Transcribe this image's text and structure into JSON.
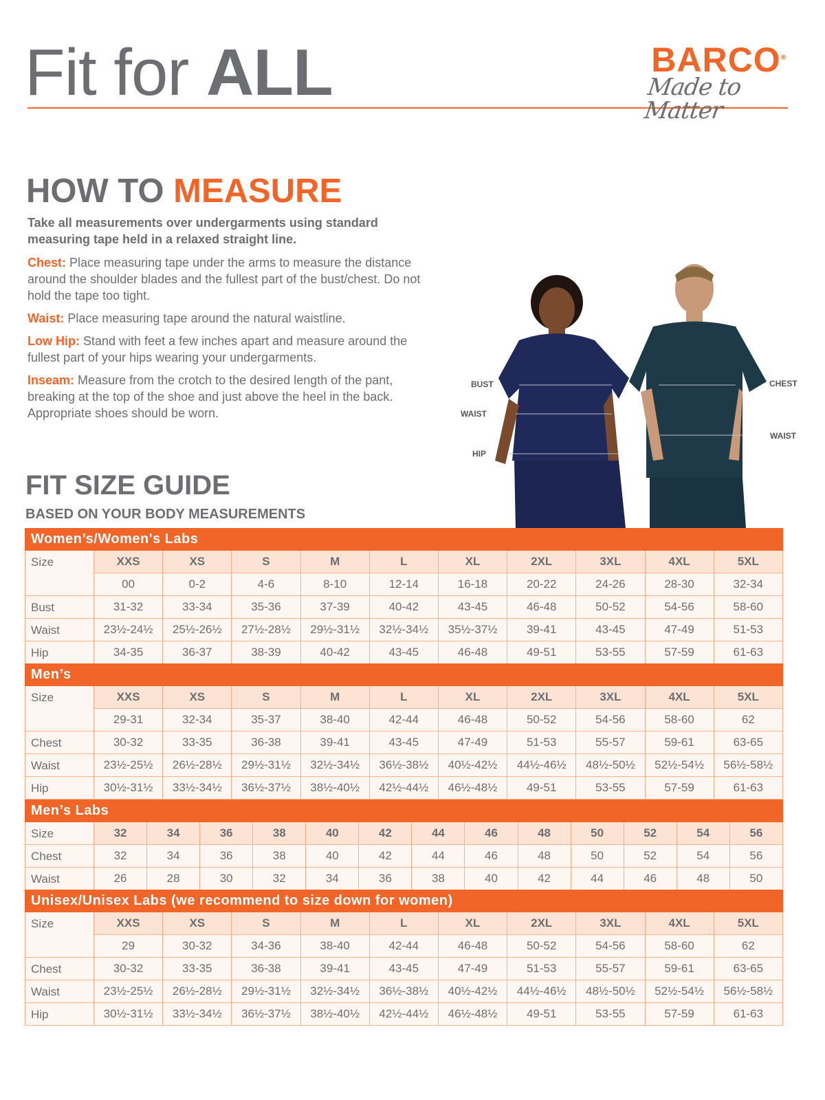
{
  "header": {
    "title_light": "Fit for ",
    "title_bold": "ALL",
    "brand": "BARCO",
    "brand_mark": "®",
    "tagline": "Made to Matter"
  },
  "how_to_measure": {
    "title_a": "HOW TO ",
    "title_b": "MEASURE",
    "lead": "Take all measurements over undergarments using standard measuring tape held in a relaxed straight line.",
    "items": [
      {
        "key": "Chest:",
        "text": "Place measuring tape under the arms to measure the distance around the shoulder blades and the fullest part of the bust/chest. Do not hold the tape too tight."
      },
      {
        "key": "Waist:",
        "text": "Place measuring tape around the natural waistline."
      },
      {
        "key": "Low Hip:",
        "text": "Stand with feet a few inches apart and measure around the fullest part of your hips wearing your undergarments."
      },
      {
        "key": "Inseam:",
        "text": "Measure from the crotch to the desired length of the pant, breaking at the top of the shoe and just above the heel in the back. Appropriate shoes should be worn."
      }
    ]
  },
  "figure_labels": {
    "bust": "BUST",
    "waist_f": "WAIST",
    "hip": "HIP",
    "chest": "CHEST",
    "waist_m": "WAIST"
  },
  "guide": {
    "title": "FIT SIZE GUIDE",
    "subtitle": "BASED ON YOUR BODY MEASUREMENTS"
  },
  "colors": {
    "accent": "#F26529",
    "text": "#6D6E71",
    "header_cell": "#FCE3D3",
    "cell": "#FEF6F1"
  },
  "sections": [
    {
      "title": "Women’s/Women's Labs",
      "rows": [
        {
          "label": "Size",
          "values": [
            "XXS",
            "XS",
            "S",
            "M",
            "L",
            "XL",
            "2XL",
            "3XL",
            "4XL",
            "5XL"
          ],
          "size": true
        },
        {
          "label": "",
          "values": [
            "00",
            "0-2",
            "4-6",
            "8-10",
            "12-14",
            "16-18",
            "20-22",
            "24-26",
            "28-30",
            "32-34"
          ]
        },
        {
          "label": "Bust",
          "values": [
            "31-32",
            "33-34",
            "35-36",
            "37-39",
            "40-42",
            "43-45",
            "46-48",
            "50-52",
            "54-56",
            "58-60"
          ]
        },
        {
          "label": "Waist",
          "values": [
            "23½-24½",
            "25½-26½",
            "27½-28½",
            "29½-31½",
            "32½-34½",
            "35½-37½",
            "39-41",
            "43-45",
            "47-49",
            "51-53"
          ]
        },
        {
          "label": "Hip",
          "values": [
            "34-35",
            "36-37",
            "38-39",
            "40-42",
            "43-45",
            "46-48",
            "49-51",
            "53-55",
            "57-59",
            "61-63"
          ]
        }
      ]
    },
    {
      "title": "Men’s",
      "rows": [
        {
          "label": "Size",
          "values": [
            "XXS",
            "XS",
            "S",
            "M",
            "L",
            "XL",
            "2XL",
            "3XL",
            "4XL",
            "5XL"
          ],
          "size": true
        },
        {
          "label": "",
          "values": [
            "29-31",
            "32-34",
            "35-37",
            "38-40",
            "42-44",
            "46-48",
            "50-52",
            "54-56",
            "58-60",
            "62"
          ]
        },
        {
          "label": "Chest",
          "values": [
            "30-32",
            "33-35",
            "36-38",
            "39-41",
            "43-45",
            "47-49",
            "51-53",
            "55-57",
            "59-61",
            "63-65"
          ]
        },
        {
          "label": "Waist",
          "values": [
            "23½-25½",
            "26½-28½",
            "29½-31½",
            "32½-34½",
            "36½-38½",
            "40½-42½",
            "44½-46½",
            "48½-50½",
            "52½-54½",
            "56½-58½"
          ]
        },
        {
          "label": "Hip",
          "values": [
            "30½-31½",
            "33½-34½",
            "36½-37½",
            "38½-40½",
            "42½-44½",
            "46½-48½",
            "49-51",
            "53-55",
            "57-59",
            "61-63"
          ]
        }
      ]
    },
    {
      "title": "Men’s Labs",
      "rows": [
        {
          "label": "Size",
          "values": [
            "32",
            "34",
            "36",
            "38",
            "40",
            "42",
            "44",
            "46",
            "48",
            "50",
            "52",
            "54",
            "56"
          ],
          "size": true
        },
        {
          "label": "Chest",
          "values": [
            "32",
            "34",
            "36",
            "38",
            "40",
            "42",
            "44",
            "46",
            "48",
            "50",
            "52",
            "54",
            "56"
          ]
        },
        {
          "label": "Waist",
          "values": [
            "26",
            "28",
            "30",
            "32",
            "34",
            "36",
            "38",
            "40",
            "42",
            "44",
            "46",
            "48",
            "50"
          ]
        }
      ]
    },
    {
      "title": "Unisex/Unisex Labs (we recommend to size down for women)",
      "rows": [
        {
          "label": "Size",
          "values": [
            "XXS",
            "XS",
            "S",
            "M",
            "L",
            "XL",
            "2XL",
            "3XL",
            "4XL",
            "5XL"
          ],
          "size": true
        },
        {
          "label": "",
          "values": [
            "29",
            "30-32",
            "34-36",
            "38-40",
            "42-44",
            "46-48",
            "50-52",
            "54-56",
            "58-60",
            "62"
          ]
        },
        {
          "label": "Chest",
          "values": [
            "30-32",
            "33-35",
            "36-38",
            "39-41",
            "43-45",
            "47-49",
            "51-53",
            "55-57",
            "59-61",
            "63-65"
          ]
        },
        {
          "label": "Waist",
          "values": [
            "23½-25½",
            "26½-28½",
            "29½-31½",
            "32½-34½",
            "36½-38½",
            "40½-42½",
            "44½-46½",
            "48½-50½",
            "52½-54½",
            "56½-58½"
          ]
        },
        {
          "label": "Hip",
          "values": [
            "30½-31½",
            "33½-34½",
            "36½-37½",
            "38½-40½",
            "42½-44½",
            "46½-48½",
            "49-51",
            "53-55",
            "57-59",
            "61-63"
          ]
        }
      ]
    }
  ]
}
